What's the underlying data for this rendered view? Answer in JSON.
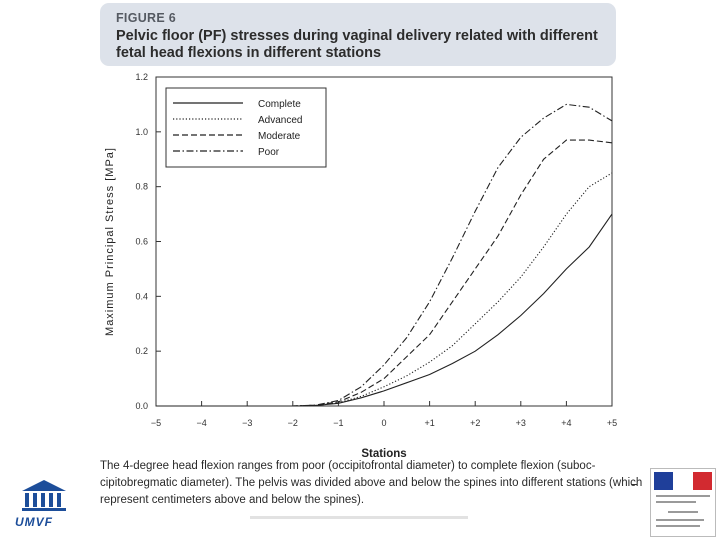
{
  "figure": {
    "label": "FIGURE 6",
    "title": "Pelvic floor (PF) stresses during vaginal delivery related with different fetal head flexions in different stations"
  },
  "caption": "The 4-degree head flexion ranges from poor (occipitofrontal diameter) to complete flexion (suboc-cipitobregmatic diameter). The pelvis was divided above and below the spines into different stations (which represent centimeters above and below the spines).",
  "logo": {
    "text": "UMVF",
    "color": "#1d4e9a"
  },
  "colors": {
    "flag_blue": "#1f3f9a",
    "flag_white": "#ffffff",
    "flag_red": "#d22a30",
    "header_bg": "#dde2ea"
  },
  "chart_data": {
    "type": "line",
    "title": "",
    "xlabel": "Stations",
    "ylabel": "Maximum Principal Stress [MPa]",
    "xlim": [
      -5,
      5
    ],
    "ylim": [
      0,
      1.2
    ],
    "x_tick_labels": [
      "−5",
      "−4",
      "−3",
      "−2",
      "−1",
      "0",
      "+1",
      "+2",
      "+3",
      "+4",
      "+5"
    ],
    "y_tick_labels": [
      "0.0",
      "0.2",
      "0.4",
      "0.6",
      "0.8",
      "1.0",
      "1.2"
    ],
    "grid": false,
    "legend_position": "top-left",
    "x": [
      -5,
      -4,
      -3,
      -2,
      -1.5,
      -1,
      -0.5,
      0,
      0.5,
      1,
      1.5,
      2,
      2.5,
      3,
      3.5,
      4,
      4.5,
      5
    ],
    "series": [
      {
        "name": "Complete",
        "style": "solid",
        "values": [
          0,
          0,
          0,
          0,
          0.002,
          0.01,
          0.03,
          0.055,
          0.085,
          0.115,
          0.155,
          0.2,
          0.26,
          0.33,
          0.41,
          0.5,
          0.58,
          0.7
        ]
      },
      {
        "name": "Advanced",
        "style": "dotted",
        "values": [
          0,
          0,
          0,
          0,
          0.002,
          0.012,
          0.035,
          0.07,
          0.11,
          0.16,
          0.22,
          0.3,
          0.38,
          0.47,
          0.58,
          0.7,
          0.8,
          0.85
        ]
      },
      {
        "name": "Moderate",
        "style": "dashed",
        "values": [
          0,
          0,
          0,
          0,
          0.003,
          0.015,
          0.05,
          0.1,
          0.18,
          0.26,
          0.38,
          0.5,
          0.62,
          0.77,
          0.9,
          0.97,
          0.97,
          0.96
        ]
      },
      {
        "name": "Poor",
        "style": "dashdot",
        "values": [
          0,
          0,
          0,
          0,
          0.003,
          0.02,
          0.07,
          0.15,
          0.25,
          0.38,
          0.54,
          0.71,
          0.87,
          0.98,
          1.05,
          1.1,
          1.09,
          1.04
        ]
      }
    ]
  }
}
